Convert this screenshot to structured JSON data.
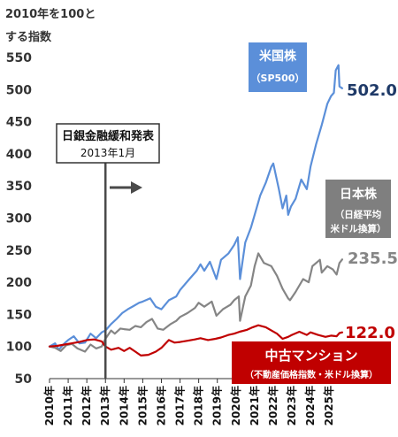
{
  "chart_data": {
    "type": "line",
    "title": "",
    "ylabel_lines": [
      "2010年を100と",
      "する指数"
    ],
    "xlabel": "",
    "ylim": [
      50,
      550
    ],
    "yticks": [
      50,
      100,
      150,
      200,
      250,
      300,
      350,
      400,
      450,
      500,
      550
    ],
    "x_range": [
      2010,
      2025.75
    ],
    "xticks": [
      {
        "value": 2010,
        "label": "2010年"
      },
      {
        "value": 2011,
        "label": "2011年"
      },
      {
        "value": 2012,
        "label": "2012年"
      },
      {
        "value": 2013,
        "label": "2013年"
      },
      {
        "value": 2014,
        "label": "2014年"
      },
      {
        "value": 2015,
        "label": "2015年"
      },
      {
        "value": 2016,
        "label": "2016年"
      },
      {
        "value": 2017,
        "label": "2017年"
      },
      {
        "value": 2018,
        "label": "2018年"
      },
      {
        "value": 2019,
        "label": "2019年"
      },
      {
        "value": 2020,
        "label": "2020年"
      },
      {
        "value": 2021,
        "label": "2021年"
      },
      {
        "value": 2022,
        "label": "2022年"
      },
      {
        "value": 2023,
        "label": "2023年"
      },
      {
        "value": 2024,
        "label": "2024年"
      },
      {
        "value": 2025,
        "label": "2025年"
      }
    ],
    "grid": false,
    "series": [
      {
        "key": "sp500",
        "name_lines": [
          "米国株",
          "（SP500）"
        ],
        "color": "#5b8fd9",
        "label_bg": "#5b8fd9",
        "label_fg": "#ffffff",
        "end_label": "502.0",
        "end_label_color": "#1f3a68",
        "points": [
          [
            2010.0,
            100
          ],
          [
            2010.3,
            105
          ],
          [
            2010.5,
            95
          ],
          [
            2010.8,
            105
          ],
          [
            2011.0,
            110
          ],
          [
            2011.3,
            116
          ],
          [
            2011.6,
            105
          ],
          [
            2011.9,
            106
          ],
          [
            2012.2,
            120
          ],
          [
            2012.5,
            113
          ],
          [
            2012.8,
            122
          ],
          [
            2013.0,
            125
          ],
          [
            2013.3,
            135
          ],
          [
            2013.6,
            143
          ],
          [
            2013.9,
            152
          ],
          [
            2014.2,
            158
          ],
          [
            2014.5,
            163
          ],
          [
            2014.8,
            168
          ],
          [
            2015.0,
            170
          ],
          [
            2015.4,
            175
          ],
          [
            2015.7,
            162
          ],
          [
            2016.0,
            158
          ],
          [
            2016.4,
            172
          ],
          [
            2016.8,
            178
          ],
          [
            2017.0,
            188
          ],
          [
            2017.5,
            205
          ],
          [
            2017.9,
            218
          ],
          [
            2018.1,
            228
          ],
          [
            2018.3,
            218
          ],
          [
            2018.6,
            232
          ],
          [
            2018.95,
            205
          ],
          [
            2019.2,
            235
          ],
          [
            2019.6,
            245
          ],
          [
            2019.9,
            258
          ],
          [
            2020.1,
            270
          ],
          [
            2020.22,
            205
          ],
          [
            2020.5,
            262
          ],
          [
            2020.8,
            285
          ],
          [
            2021.0,
            305
          ],
          [
            2021.3,
            335
          ],
          [
            2021.6,
            355
          ],
          [
            2021.9,
            380
          ],
          [
            2022.0,
            385
          ],
          [
            2022.3,
            345
          ],
          [
            2022.5,
            315
          ],
          [
            2022.7,
            335
          ],
          [
            2022.8,
            305
          ],
          [
            2022.95,
            318
          ],
          [
            2023.2,
            330
          ],
          [
            2023.5,
            360
          ],
          [
            2023.8,
            345
          ],
          [
            2024.0,
            380
          ],
          [
            2024.3,
            415
          ],
          [
            2024.6,
            445
          ],
          [
            2024.9,
            478
          ],
          [
            2025.1,
            490
          ],
          [
            2025.25,
            495
          ],
          [
            2025.35,
            530
          ],
          [
            2025.5,
            538
          ],
          [
            2025.55,
            505
          ],
          [
            2025.7,
            502
          ]
        ]
      },
      {
        "key": "nikkei",
        "name_lines": [
          "日本株",
          "（日経平均",
          "米ドル換算）"
        ],
        "color": "#858585",
        "label_bg": "#7f7f7f",
        "label_fg": "#ffffff",
        "end_label": "235.5",
        "end_label_color": "#858585",
        "points": [
          [
            2010.0,
            100
          ],
          [
            2010.3,
            98
          ],
          [
            2010.6,
            93
          ],
          [
            2010.9,
            102
          ],
          [
            2011.2,
            104
          ],
          [
            2011.5,
            97
          ],
          [
            2011.9,
            92
          ],
          [
            2012.2,
            103
          ],
          [
            2012.5,
            97
          ],
          [
            2012.8,
            100
          ],
          [
            2013.0,
            112
          ],
          [
            2013.3,
            125
          ],
          [
            2013.5,
            120
          ],
          [
            2013.8,
            128
          ],
          [
            2014.0,
            127
          ],
          [
            2014.3,
            126
          ],
          [
            2014.6,
            132
          ],
          [
            2014.9,
            130
          ],
          [
            2015.2,
            138
          ],
          [
            2015.5,
            143
          ],
          [
            2015.8,
            128
          ],
          [
            2016.1,
            126
          ],
          [
            2016.5,
            135
          ],
          [
            2016.8,
            140
          ],
          [
            2017.0,
            146
          ],
          [
            2017.4,
            152
          ],
          [
            2017.8,
            160
          ],
          [
            2018.0,
            168
          ],
          [
            2018.3,
            162
          ],
          [
            2018.7,
            170
          ],
          [
            2018.95,
            148
          ],
          [
            2019.3,
            158
          ],
          [
            2019.7,
            165
          ],
          [
            2019.9,
            172
          ],
          [
            2020.15,
            178
          ],
          [
            2020.22,
            140
          ],
          [
            2020.5,
            178
          ],
          [
            2020.8,
            195
          ],
          [
            2021.0,
            225
          ],
          [
            2021.2,
            245
          ],
          [
            2021.5,
            230
          ],
          [
            2021.9,
            225
          ],
          [
            2022.2,
            210
          ],
          [
            2022.5,
            190
          ],
          [
            2022.8,
            175
          ],
          [
            2022.9,
            172
          ],
          [
            2023.2,
            185
          ],
          [
            2023.6,
            205
          ],
          [
            2023.9,
            200
          ],
          [
            2024.1,
            225
          ],
          [
            2024.5,
            235
          ],
          [
            2024.6,
            215
          ],
          [
            2024.9,
            225
          ],
          [
            2025.2,
            220
          ],
          [
            2025.4,
            212
          ],
          [
            2025.55,
            230
          ],
          [
            2025.7,
            235.5
          ]
        ]
      },
      {
        "key": "condo",
        "name_lines": [
          "中古マンション",
          "（不動産価格指数・米ドル換算）"
        ],
        "color": "#c00000",
        "label_bg": "#c00000",
        "label_fg": "#ffffff",
        "end_label": "122.0",
        "end_label_color": "#c00000",
        "points": [
          [
            2010.0,
            100
          ],
          [
            2010.4,
            101
          ],
          [
            2010.8,
            103
          ],
          [
            2011.2,
            105
          ],
          [
            2011.6,
            107
          ],
          [
            2012.0,
            110
          ],
          [
            2012.4,
            111
          ],
          [
            2012.8,
            108
          ],
          [
            2013.0,
            100
          ],
          [
            2013.3,
            95
          ],
          [
            2013.7,
            98
          ],
          [
            2014.0,
            93
          ],
          [
            2014.3,
            98
          ],
          [
            2014.6,
            92
          ],
          [
            2014.9,
            86
          ],
          [
            2015.3,
            87
          ],
          [
            2015.7,
            92
          ],
          [
            2016.0,
            98
          ],
          [
            2016.4,
            110
          ],
          [
            2016.7,
            106
          ],
          [
            2017.0,
            107
          ],
          [
            2017.4,
            109
          ],
          [
            2017.8,
            111
          ],
          [
            2018.1,
            113
          ],
          [
            2018.5,
            110
          ],
          [
            2018.9,
            112
          ],
          [
            2019.2,
            114
          ],
          [
            2019.6,
            118
          ],
          [
            2019.9,
            120
          ],
          [
            2020.2,
            123
          ],
          [
            2020.6,
            126
          ],
          [
            2020.9,
            130
          ],
          [
            2021.2,
            133
          ],
          [
            2021.6,
            130
          ],
          [
            2021.9,
            125
          ],
          [
            2022.2,
            120
          ],
          [
            2022.5,
            112
          ],
          [
            2022.8,
            115
          ],
          [
            2023.0,
            118
          ],
          [
            2023.4,
            123
          ],
          [
            2023.8,
            118
          ],
          [
            2024.0,
            122
          ],
          [
            2024.4,
            118
          ],
          [
            2024.8,
            115
          ],
          [
            2025.1,
            117
          ],
          [
            2025.4,
            116
          ],
          [
            2025.55,
            121
          ],
          [
            2025.7,
            122
          ]
        ]
      }
    ],
    "annotations": [
      {
        "lines": [
          "日銀金融緩和発表",
          "2013年1月"
        ],
        "x": 2013.0
      }
    ]
  }
}
